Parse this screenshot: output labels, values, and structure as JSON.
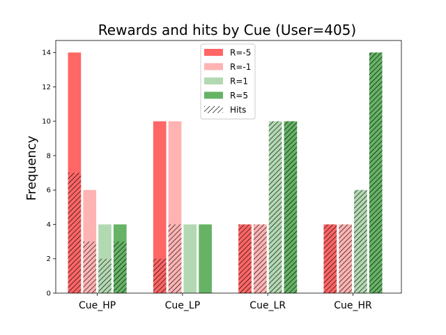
{
  "chart_data": {
    "type": "bar",
    "title": "Rewards and hits by Cue (User=405)",
    "xlabel": "",
    "ylabel": "Frequency",
    "categories": [
      "Cue_HP",
      "Cue_LP",
      "Cue_LR",
      "Cue_HR"
    ],
    "ylim": [
      0,
      14.7
    ],
    "yticks": [
      0,
      2,
      4,
      6,
      8,
      10,
      12,
      14
    ],
    "grid": false,
    "legend_position": "top-center",
    "hits_label": "Hits",
    "series": [
      {
        "name": "R=-5",
        "color": "#ff6666",
        "values": [
          14,
          10,
          4,
          4
        ],
        "hits": [
          7,
          2,
          4,
          4
        ]
      },
      {
        "name": "R=-1",
        "color": "#ffb3b3",
        "values": [
          6,
          10,
          4,
          4
        ],
        "hits": [
          3,
          4,
          4,
          4
        ]
      },
      {
        "name": "R=1",
        "color": "#b3d9b3",
        "values": [
          4,
          4,
          10,
          6
        ],
        "hits": [
          2,
          0,
          10,
          6
        ]
      },
      {
        "name": "R=5",
        "color": "#66b366",
        "values": [
          4,
          4,
          10,
          14
        ],
        "hits": [
          3,
          0,
          10,
          14
        ]
      }
    ]
  }
}
